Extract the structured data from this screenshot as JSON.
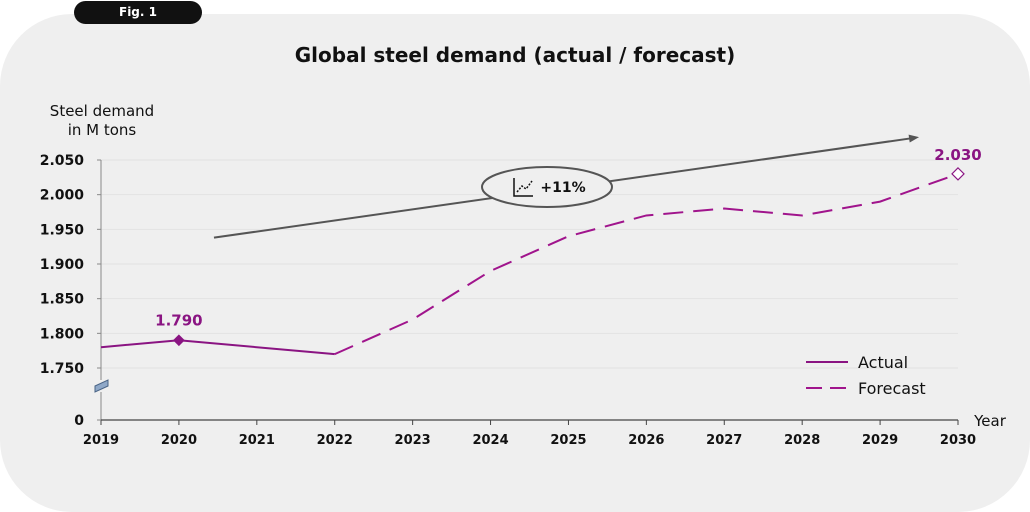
{
  "figure_label": "Fig. 1",
  "chart_data": {
    "type": "line",
    "title": "Global steel demand (actual / forecast)",
    "ylabel": [
      "Steel demand",
      "in M tons"
    ],
    "xlabel": "Year",
    "ylim": [
      1700,
      2050
    ],
    "y_ticks": [
      "2.050",
      "2.000",
      "1.950",
      "1.900",
      "1.850",
      "1.800",
      "1.750",
      "0"
    ],
    "y_tick_values": [
      2050,
      2000,
      1950,
      1900,
      1850,
      1800,
      1750,
      1700
    ],
    "y_axis_break": true,
    "x": [
      2019,
      2020,
      2021,
      2022,
      2023,
      2024,
      2025,
      2026,
      2027,
      2028,
      2029,
      2030
    ],
    "series": [
      {
        "name": "Actual",
        "style": "solid",
        "color": "#8a1482",
        "x": [
          2019,
          2020,
          2022
        ],
        "values": [
          1780,
          1790,
          1770
        ]
      },
      {
        "name": "Forecast",
        "style": "dashed",
        "color": "#a0148c",
        "x": [
          2022,
          2023,
          2024,
          2025,
          2026,
          2027,
          2028,
          2029,
          2030
        ],
        "values": [
          1770,
          1820,
          1890,
          1940,
          1970,
          1980,
          1970,
          1990,
          2030
        ]
      }
    ],
    "annotations": [
      {
        "text": "1.790",
        "x": 2020,
        "y": 1790,
        "marker": "filled-diamond"
      },
      {
        "text": "2.030",
        "x": 2030,
        "y": 2030,
        "marker": "open-diamond"
      }
    ],
    "trend_arrow": {
      "from": [
        2020.45,
        1938
      ],
      "to": [
        2029.5,
        2083
      ],
      "label": "+11%",
      "icon": "trend-chart-icon"
    },
    "legend_position": "lower-right",
    "grid": true,
    "colors": {
      "accent": "#8a1482",
      "arrow": "#555555",
      "panel": "#efefef",
      "grid": "#e2e2e2"
    }
  }
}
